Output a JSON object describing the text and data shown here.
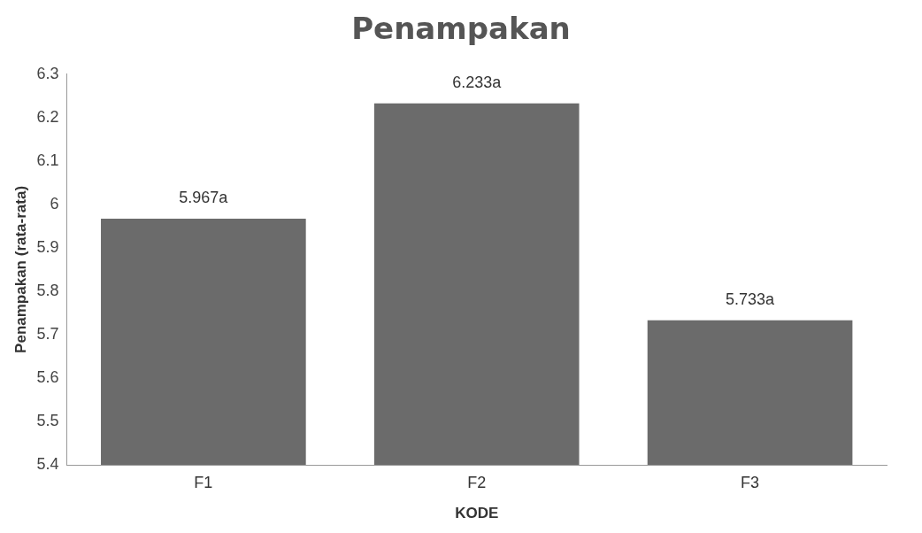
{
  "chart_data": {
    "type": "bar",
    "title": "Penampakan",
    "xlabel": "KODE",
    "ylabel": "Penampakan (rata-rata)",
    "categories": [
      "F1",
      "F2",
      "F3"
    ],
    "values": [
      5.967,
      6.233,
      5.733
    ],
    "value_labels": [
      "5.967a",
      "6.233a",
      "5.733a"
    ],
    "color": "#6b6b6b",
    "ylim": [
      5.4,
      6.3
    ],
    "yticks": [
      5.4,
      5.5,
      5.6,
      5.7,
      5.8,
      5.9,
      6,
      6.1,
      6.2,
      6.3
    ],
    "grid": false,
    "legend": false
  }
}
